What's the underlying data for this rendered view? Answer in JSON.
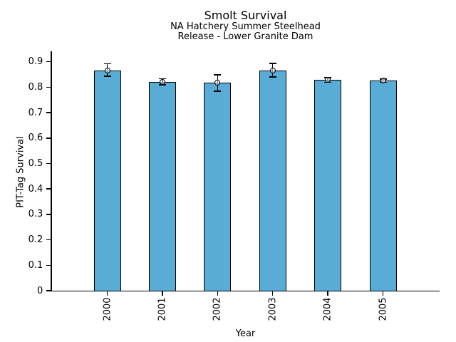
{
  "header": {
    "title": "Smolt Survival",
    "subtitle1": "NA Hatchery Summer Steelhead",
    "subtitle2": "Release - Lower Granite Dam"
  },
  "chart_data": {
    "type": "bar",
    "title": "Smolt Survival",
    "subtitle": [
      "NA Hatchery Summer Steelhead",
      "Release - Lower Granite Dam"
    ],
    "categories": [
      "2000",
      "2001",
      "2002",
      "2003",
      "2004",
      "2005"
    ],
    "values": [
      0.866,
      0.822,
      0.818,
      0.866,
      0.828,
      0.826
    ],
    "error_low": [
      0.843,
      0.81,
      0.784,
      0.84,
      0.819,
      0.82
    ],
    "error_high": [
      0.892,
      0.834,
      0.849,
      0.893,
      0.837,
      0.832
    ],
    "xlabel": "Year",
    "ylabel": "PIT-Tag Survival",
    "ylim": [
      0,
      0.94
    ],
    "yticks": [
      0,
      0.1,
      0.2,
      0.3,
      0.4,
      0.5,
      0.6,
      0.7,
      0.8,
      0.9
    ],
    "ytick_labels": [
      "0",
      "0.1",
      "0.2",
      "0.3",
      "0.4",
      "0.5",
      "0.6",
      "0.7",
      "0.8",
      "0.9"
    ],
    "bar_color": "#58ACD6",
    "bar_edge_color": "#000000",
    "error_color": "#000000",
    "error_marker": "open-circle",
    "grid": false,
    "legend": false
  }
}
